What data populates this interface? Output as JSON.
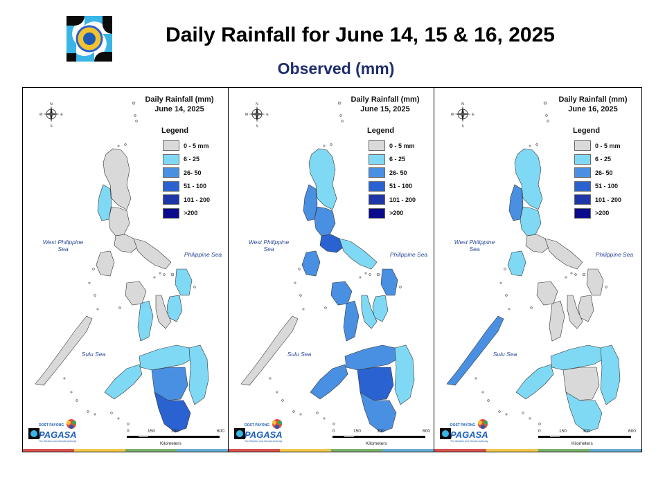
{
  "header": {
    "title": "Daily Rainfall for June 14, 15 & 16, 2025",
    "subtitle": "Observed (mm)"
  },
  "legend": {
    "title": "Legend",
    "classes": [
      {
        "label": "0 - 5 mm",
        "color": "#d9d9d9"
      },
      {
        "label": "6 - 25",
        "color": "#7fd9f5"
      },
      {
        "label": "26- 50",
        "color": "#4a90e2"
      },
      {
        "label": "51 - 100",
        "color": "#2a62d1"
      },
      {
        "label": "101 - 200",
        "color": "#1e36a8"
      },
      {
        "label": ">200",
        "color": "#0a0a8c"
      }
    ]
  },
  "panels": [
    {
      "title_line1": "Daily Rainfall (mm)",
      "title_line2": "June 14, 2025",
      "regions": {
        "luzon_north": "#d9d9d9",
        "luzon_west": "#7fd9f5",
        "luzon_central": "#d9d9d9",
        "luzon_south": "#d9d9d9",
        "bicol": "#d9d9d9",
        "samar": "#7fd9f5",
        "panay": "#d9d9d9",
        "negros": "#7fd9f5",
        "cebu_bohol": "#d9d9d9",
        "leyte": "#7fd9f5",
        "palawan": "#d9d9d9",
        "mindoro": "#d9d9d9",
        "mindanao_north": "#7fd9f5",
        "mindanao_west": "#7fd9f5",
        "mindanao_central": "#4a90e2",
        "mindanao_south": "#2a62d1",
        "mindanao_east": "#7fd9f5"
      }
    },
    {
      "title_line1": "Daily Rainfall (mm)",
      "title_line2": "June 15, 2025",
      "regions": {
        "luzon_north": "#7fd9f5",
        "luzon_west": "#4a90e2",
        "luzon_central": "#4a90e2",
        "luzon_south": "#2a62d1",
        "bicol": "#7fd9f5",
        "samar": "#4a90e2",
        "panay": "#4a90e2",
        "negros": "#4a90e2",
        "cebu_bohol": "#7fd9f5",
        "leyte": "#7fd9f5",
        "palawan": "#d9d9d9",
        "mindoro": "#4a90e2",
        "mindanao_north": "#4a90e2",
        "mindanao_west": "#4a90e2",
        "mindanao_central": "#2a62d1",
        "mindanao_south": "#4a90e2",
        "mindanao_east": "#7fd9f5"
      }
    },
    {
      "title_line1": "Daily Rainfall (mm)",
      "title_line2": "June 16, 2025",
      "regions": {
        "luzon_north": "#7fd9f5",
        "luzon_west": "#4a90e2",
        "luzon_central": "#7fd9f5",
        "luzon_south": "#d9d9d9",
        "bicol": "#d9d9d9",
        "samar": "#d9d9d9",
        "panay": "#d9d9d9",
        "negros": "#d9d9d9",
        "cebu_bohol": "#d9d9d9",
        "leyte": "#d9d9d9",
        "palawan": "#4a90e2",
        "mindoro": "#7fd9f5",
        "mindanao_north": "#7fd9f5",
        "mindanao_west": "#7fd9f5",
        "mindanao_central": "#d9d9d9",
        "mindanao_south": "#7fd9f5",
        "mindanao_east": "#7fd9f5"
      }
    }
  ],
  "sea_labels": {
    "west": "West Philippine Sea",
    "east": "Philippine Sea",
    "sulu": "Sulu Sea"
  },
  "scalebar": {
    "ticks": [
      "0",
      "150",
      "300",
      "600"
    ],
    "caption": "Kilometers"
  },
  "compass": {
    "n": "N",
    "s": "S",
    "e": "E",
    "w": "W"
  },
  "footer_logo": {
    "small": "DOST PAYONG",
    "name": "PAGASA",
    "tagline": "The Weather and Climate Authority"
  },
  "strip_colors": [
    "#d9534f",
    "#f2c94c",
    "#7cb26e",
    "#6aaed6"
  ]
}
